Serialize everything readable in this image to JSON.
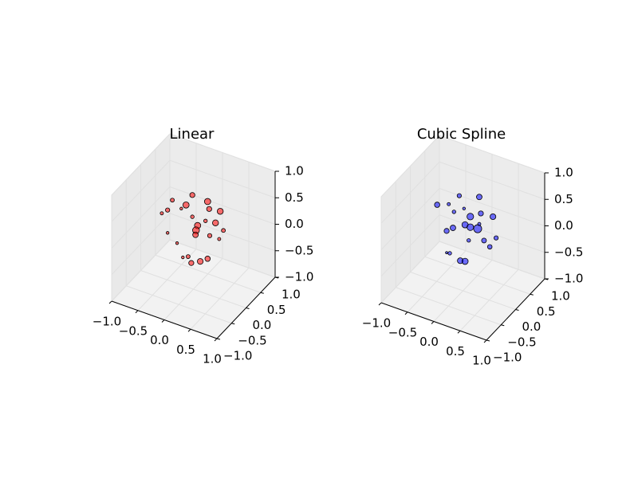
{
  "chart_data": [
    {
      "type": "scatter3d",
      "title": "Linear",
      "color": "#ff0000",
      "x": [
        -0.02,
        0.27,
        -0.4,
        -0.6,
        -0.49,
        -0.23,
        -0.02,
        0.3,
        0.51,
        -0.14,
        0.42,
        0.23,
        0.08,
        0.05,
        0.04,
        0.57,
        -0.49,
        0.31,
        0.49,
        -0.31,
        -0.1,
        -0.04,
        0.13,
        0.27,
        -0.2
      ],
      "y": [
        0,
        0,
        0,
        0,
        0,
        0,
        0,
        0,
        0,
        0,
        0,
        0,
        0,
        0,
        0,
        0,
        0,
        0,
        0,
        0,
        0,
        0,
        0,
        0,
        0
      ],
      "z": [
        0.77,
        0.75,
        0.54,
        0.22,
        0.32,
        0.44,
        0.36,
        0.62,
        0.65,
        0.54,
        0.4,
        0.37,
        0.23,
        0.13,
        0.04,
        0.31,
        -0.11,
        0.12,
        0.12,
        -0.24,
        -0.42,
        -0.52,
        -0.43,
        -0.33,
        -0.47
      ],
      "sizes": [
        20,
        30,
        12,
        8,
        14,
        6,
        10,
        20,
        28,
        30,
        28,
        10,
        30,
        36,
        24,
        12,
        6,
        14,
        8,
        6,
        12,
        20,
        26,
        22,
        6
      ],
      "xlim": [
        -1,
        1
      ],
      "ylim": [
        -1,
        1
      ],
      "zlim": [
        -1,
        1
      ],
      "xticks": [
        {
          "value": -1,
          "label": "−1.0"
        },
        {
          "value": -0.5,
          "label": "−0.5"
        },
        {
          "value": 0,
          "label": "0.0"
        },
        {
          "value": 0.5,
          "label": "0.5"
        },
        {
          "value": 1,
          "label": "1.0"
        }
      ],
      "yticks": [
        {
          "value": -1,
          "label": "−1.0"
        },
        {
          "value": -0.5,
          "label": "−0.5"
        },
        {
          "value": 0,
          "label": "0.0"
        },
        {
          "value": 0.5,
          "label": "0.5"
        },
        {
          "value": 1,
          "label": "1.0"
        }
      ],
      "zticks": [
        {
          "value": -1,
          "label": "−1.0"
        },
        {
          "value": -0.5,
          "label": "−0.5"
        },
        {
          "value": 0,
          "label": "0.0"
        },
        {
          "value": 0.5,
          "label": "0.5"
        },
        {
          "value": 1,
          "label": "1.0"
        }
      ],
      "grid": true
    },
    {
      "type": "scatter3d",
      "title": "Cubic Spline",
      "color": "#0000ff",
      "x": [
        0.31,
        -0.07,
        -0.49,
        -0.27,
        0.02,
        0.14,
        0.57,
        -0.17,
        0.34,
        0.04,
        -0.31,
        -0.19,
        0.14,
        0.28,
        0.31,
        0.4,
        0.63,
        0.51,
        0.11,
        -0.25,
        -0.05,
        0.04,
        -0.31
      ],
      "y": [
        0,
        0,
        0,
        0,
        0,
        0,
        0,
        0,
        0,
        0,
        0,
        0,
        0,
        0,
        0,
        0,
        0,
        0,
        0,
        0,
        0,
        0,
        0
      ],
      "z": [
        0.88,
        0.77,
        0.45,
        0.54,
        0.56,
        0.45,
        0.6,
        0.43,
        0.58,
        0.26,
        0.02,
        0.12,
        0.25,
        0.27,
        0.37,
        0.09,
        0.22,
        0.01,
        -0.01,
        -0.38,
        -0.45,
        -0.43,
        -0.39
      ],
      "sizes": [
        24,
        14,
        22,
        8,
        6,
        34,
        26,
        10,
        20,
        30,
        20,
        24,
        34,
        50,
        8,
        18,
        14,
        16,
        10,
        10,
        26,
        30,
        4
      ],
      "xlim": [
        -1,
        1
      ],
      "ylim": [
        -1,
        1
      ],
      "zlim": [
        -1,
        1
      ],
      "xticks": [
        {
          "value": -1,
          "label": "−1.0"
        },
        {
          "value": -0.5,
          "label": "−0.5"
        },
        {
          "value": 0,
          "label": "0.0"
        },
        {
          "value": 0.5,
          "label": "0.5"
        },
        {
          "value": 1,
          "label": "1.0"
        }
      ],
      "yticks": [
        {
          "value": -1,
          "label": "−1.0"
        },
        {
          "value": -0.5,
          "label": "−0.5"
        },
        {
          "value": 0,
          "label": "0.0"
        },
        {
          "value": 0.5,
          "label": "0.5"
        },
        {
          "value": 1,
          "label": "1.0"
        }
      ],
      "zticks": [
        {
          "value": -1,
          "label": "−1.0"
        },
        {
          "value": -0.5,
          "label": "−0.5"
        },
        {
          "value": 0,
          "label": "0.0"
        },
        {
          "value": 0.5,
          "label": "0.5"
        },
        {
          "value": 1,
          "label": "1.0"
        }
      ],
      "grid": true
    }
  ]
}
